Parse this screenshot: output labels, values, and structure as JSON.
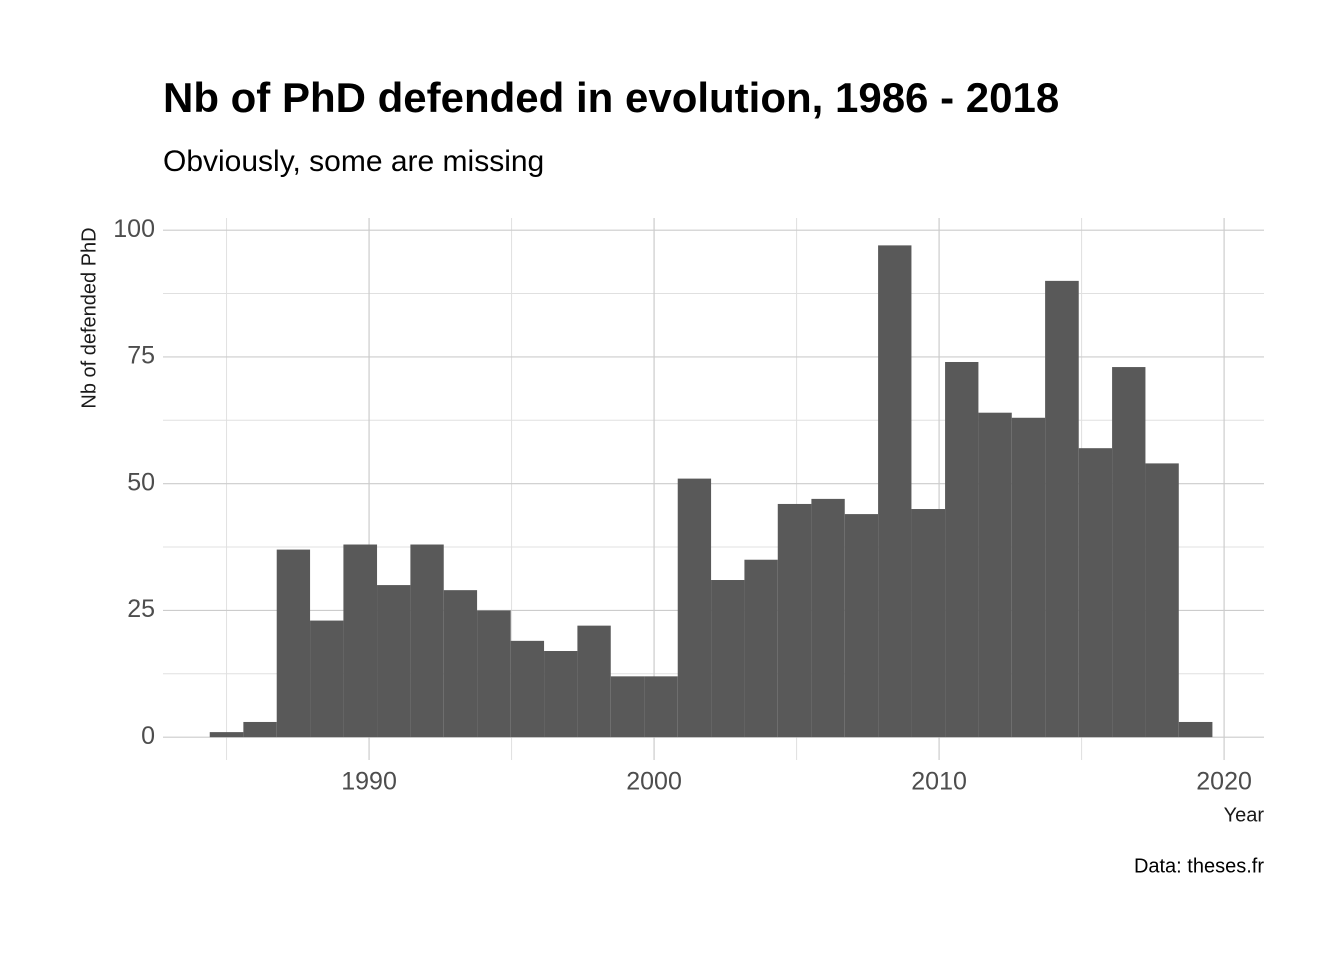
{
  "chart_data": {
    "type": "histogram",
    "title": "Nb of PhD defended in evolution, 1986 - 2018",
    "subtitle": "Obviously, some are missing",
    "x_label": "Year",
    "y_label": "Nb of defended PhD",
    "caption": "Data: theses.fr",
    "bins": [
      1984.41,
      1985.59,
      1986.76,
      1987.93,
      1989.1,
      1990.28,
      1991.45,
      1992.62,
      1993.79,
      1994.97,
      1996.14,
      1997.31,
      1998.48,
      1999.66,
      2000.83,
      2002.0,
      2003.17,
      2004.34,
      2005.52,
      2006.69,
      2007.86,
      2009.03,
      2010.21,
      2011.38,
      2012.55,
      2013.72,
      2014.9,
      2016.07,
      2017.24,
      2018.41,
      2019.59
    ],
    "values": [
      1,
      3,
      37,
      23,
      38,
      30,
      38,
      29,
      25,
      19,
      17,
      22,
      12,
      12,
      51,
      31,
      35,
      46,
      47,
      44,
      97,
      45,
      74,
      64,
      63,
      90,
      57,
      73,
      54,
      3
    ],
    "color": "#595959",
    "xlim": [
      1982.77,
      2021.4
    ],
    "ylim": [
      -4.5,
      102.4
    ],
    "xticks": [
      1990,
      2000,
      2010,
      2020
    ],
    "yticks": [
      0,
      25,
      50,
      75,
      100
    ],
    "x_minor_ticks": [
      1985,
      1995,
      2005,
      2015
    ],
    "y_minor_ticks": [
      12.5,
      37.5,
      62.5,
      87.5
    ],
    "grid": true
  }
}
